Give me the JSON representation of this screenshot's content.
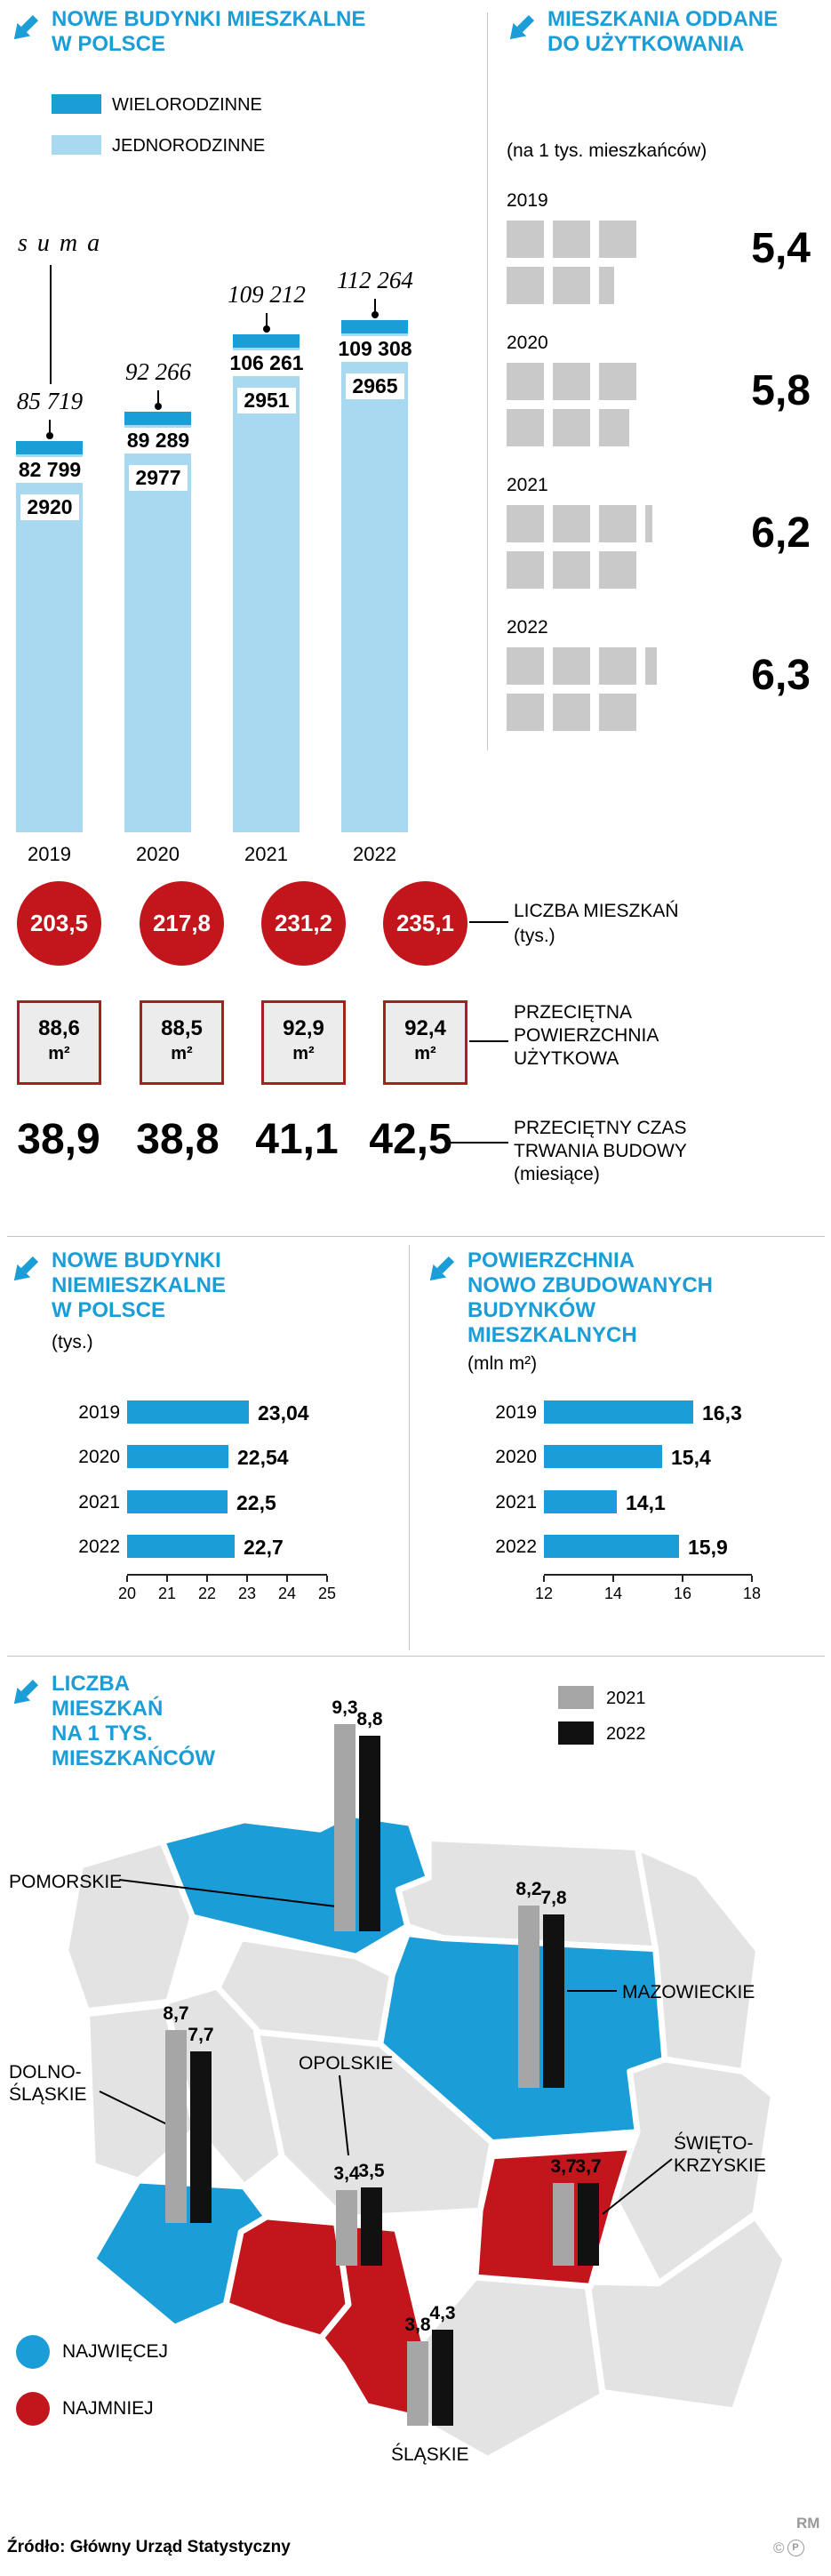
{
  "colors": {
    "cyan": "#1b9dd8",
    "lightblue": "#a9d9f1",
    "red": "#c3161c",
    "dred": "#a6201e",
    "mapgray": "#e3e3e3",
    "bargray": "#a6a6a6",
    "sqgray": "#c9c9c9",
    "divider": "#c4c4c4"
  },
  "ui": {
    "s1l": {
      "t1": "NOWE BUDYNKI MIESZKALNE",
      "t2": "W POLSCE",
      "leg1": "WIELORODZINNE",
      "leg2": "JEDNORODZINNE",
      "suma": "s u m a"
    },
    "s1r": {
      "t1": "MIESZKANIA ODDANE",
      "t2": "DO UŻYTKOWANIA",
      "sub": "(na 1 tys. mieszkańców)"
    },
    "row_circles": {
      "l1": "LICZBA MIESZKAŃ",
      "l2": "(tys.)"
    },
    "row_area": {
      "l1": "PRZECIĘTNA",
      "l2": "POWIERZCHNIA",
      "l3": "UŻYTKOWA"
    },
    "row_time": {
      "l1": "PRZECIĘTNY CZAS",
      "l2": "TRWANIA BUDOWY",
      "l3": "(miesiące)"
    },
    "s2l": {
      "t1": "NOWE BUDYNKI",
      "t2": "NIEMIESZKALNE",
      "t3": "W POLSCE",
      "sub": "(tys.)"
    },
    "s2r": {
      "t1": "POWIERZCHNIA",
      "t2": "NOWO ZBUDOWANYCH",
      "t3": "BUDYNKÓW",
      "t4": "MIESZKALNYCH",
      "sub": "(mln m²)"
    },
    "s3": {
      "t1": "LICZBA",
      "t2": "MIESZKAŃ",
      "t3": "NA 1 TYS.",
      "t4": "MIESZKAŃCÓW",
      "leg2021": "2021",
      "leg2022": "2022",
      "most": "NAJWIĘCEJ",
      "least": "NAJMNIEJ",
      "labels": {
        "pomorskie": "POMORSKIE",
        "mazowieckie": "MAZOWIECKIE",
        "dolno1": "DOLNO-",
        "dolno2": "ŚLĄSKIE",
        "opolskie": "OPOLSKIE",
        "swieto1": "ŚWIĘTO-",
        "swieto2": "KRZYSKIE",
        "slaskie": "ŚLĄSKIE"
      }
    },
    "footer": {
      "source": "Źródło: Główny Urząd Statystyczny",
      "rm": "RM",
      "c": "©",
      "p": "P"
    }
  },
  "chart_data": [
    {
      "id": "nowe-budynki-mieszkalne",
      "type": "bar",
      "stacked": true,
      "title": "NOWE BUDYNKI MIESZKALNE W POLSCE",
      "categories": [
        "2019",
        "2020",
        "2021",
        "2022"
      ],
      "series": [
        {
          "name": "WIELORODZINNE",
          "values": [
            2920,
            2977,
            2951,
            2965
          ]
        },
        {
          "name": "JEDNORODZINNE",
          "values": [
            82799,
            89289,
            106261,
            109308
          ]
        }
      ],
      "totals": [
        85719,
        92266,
        109212,
        112264
      ],
      "totals_label": "suma"
    },
    {
      "id": "mieszkania-oddane",
      "type": "pictogram",
      "title": "MIESZKANIA ODDANE DO UŻYTKOWANIA",
      "subtitle": "(na 1 tys. mieszkańców)",
      "categories": [
        "2019",
        "2020",
        "2021",
        "2022"
      ],
      "values": [
        5.4,
        5.8,
        6.2,
        6.3
      ]
    },
    {
      "id": "liczba-mieszkan",
      "type": "table",
      "label": "LICZBA MIESZKAŃ (tys.)",
      "categories": [
        "2019",
        "2020",
        "2021",
        "2022"
      ],
      "values": [
        203.5,
        217.8,
        231.2,
        235.1
      ]
    },
    {
      "id": "przecietna-powierzchnia-uzytkowa",
      "type": "table",
      "label": "PRZECIĘTNA POWIERZCHNIA UŻYTKOWA",
      "categories": [
        "2019",
        "2020",
        "2021",
        "2022"
      ],
      "values": [
        88.6,
        88.5,
        92.9,
        92.4
      ],
      "unit": "m²"
    },
    {
      "id": "przecietny-czas-budowy",
      "type": "table",
      "label": "PRZECIĘTNY CZAS TRWANIA BUDOWY (miesiące)",
      "categories": [
        "2019",
        "2020",
        "2021",
        "2022"
      ],
      "values": [
        38.9,
        38.8,
        41.1,
        42.5
      ]
    },
    {
      "id": "nowe-budynki-niemieszkalne",
      "type": "bar",
      "orientation": "horizontal",
      "title": "NOWE BUDYNKI NIEMIESZKALNE W POLSCE (tys.)",
      "categories": [
        "2019",
        "2020",
        "2021",
        "2022"
      ],
      "values": [
        23.04,
        22.54,
        22.5,
        22.7
      ],
      "xlim": [
        20,
        25
      ],
      "ticks": [
        20,
        21,
        22,
        23,
        24,
        25
      ]
    },
    {
      "id": "powierzchnia-nowo-zbudowanych",
      "type": "bar",
      "orientation": "horizontal",
      "title": "POWIERZCHNIA NOWO ZBUDOWANYCH BUDYNKÓW MIESZKALNYCH (mln m²)",
      "categories": [
        "2019",
        "2020",
        "2021",
        "2022"
      ],
      "values": [
        16.3,
        15.4,
        14.1,
        15.9
      ],
      "xlim": [
        12,
        18
      ],
      "ticks": [
        12,
        14,
        16,
        18
      ]
    },
    {
      "id": "liczba-mieszkan-na-1-tys",
      "type": "map-bar",
      "title": "LICZBA MIESZKAŃ NA 1 TYS. MIESZKAŃCÓW",
      "years": [
        "2021",
        "2022"
      ],
      "legend": {
        "most": "NAJWIĘCEJ",
        "least": "NAJMNIEJ"
      },
      "regions": [
        {
          "name": "POMORSKIE",
          "v2021": 9.3,
          "v2022": 8.8,
          "group": "most"
        },
        {
          "name": "MAZOWIECKIE",
          "v2021": 8.2,
          "v2022": 7.8,
          "group": "most"
        },
        {
          "name": "DOLNOŚLĄSKIE",
          "v2021": 8.7,
          "v2022": 7.7,
          "group": "most"
        },
        {
          "name": "OPOLSKIE",
          "v2021": 3.4,
          "v2022": 3.5,
          "group": "least"
        },
        {
          "name": "ŚWIĘTOKRZYSKIE",
          "v2021": 3.7,
          "v2022": 3.7,
          "group": "least"
        },
        {
          "name": "ŚLĄSKIE",
          "v2021": 3.8,
          "v2022": 4.3,
          "group": "least"
        }
      ]
    }
  ]
}
